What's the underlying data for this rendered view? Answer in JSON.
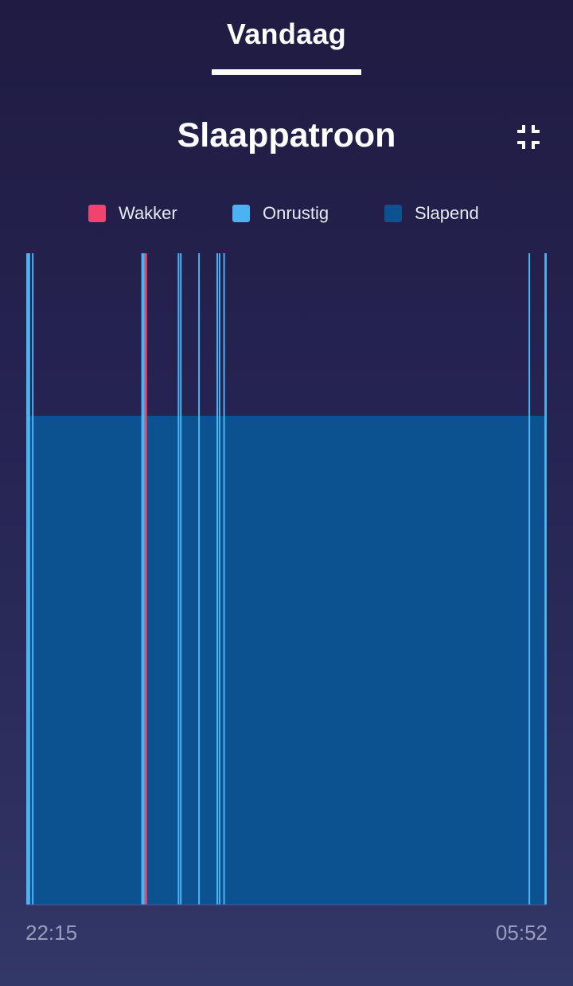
{
  "header": {
    "tab_label": "Vandaag"
  },
  "card": {
    "title": "Slaappatroon",
    "collapse_icon": "collapse-icon"
  },
  "legend": [
    {
      "label": "Wakker",
      "color": "#f0436e"
    },
    {
      "label": "Onrustig",
      "color": "#4bb3f2"
    },
    {
      "label": "Slapend",
      "color": "#0c5291"
    }
  ],
  "chart_data": {
    "type": "area",
    "x_start_label": "22:15",
    "x_end_label": "05:52",
    "x_start": "22:15",
    "x_end": "05:52",
    "levels": {
      "Slapend": 1,
      "Onrustig": 2,
      "Wakker": 2
    },
    "segments": [
      {
        "start": "22:15",
        "end": "22:16",
        "state": "Onrustig"
      },
      {
        "start": "22:16",
        "end": "22:17",
        "state": "Onrustig"
      },
      {
        "start": "22:17",
        "end": "22:18",
        "state": "Onrustig"
      },
      {
        "start": "22:20",
        "end": "22:21",
        "state": "Onrustig"
      },
      {
        "start": "23:56",
        "end": "23:59",
        "state": "Onrustig"
      },
      {
        "start": "23:59",
        "end": "00:01",
        "state": "Wakker"
      },
      {
        "start": "00:28",
        "end": "00:29",
        "state": "Onrustig"
      },
      {
        "start": "00:30",
        "end": "00:31",
        "state": "Onrustig"
      },
      {
        "start": "00:46",
        "end": "00:47",
        "state": "Onrustig"
      },
      {
        "start": "01:02",
        "end": "01:03",
        "state": "Onrustig"
      },
      {
        "start": "01:04",
        "end": "01:05",
        "state": "Onrustig"
      },
      {
        "start": "01:08",
        "end": "01:09",
        "state": "Onrustig"
      },
      {
        "start": "05:36",
        "end": "05:37",
        "state": "Onrustig"
      },
      {
        "start": "05:50",
        "end": "05:52",
        "state": "Onrustig"
      }
    ]
  }
}
